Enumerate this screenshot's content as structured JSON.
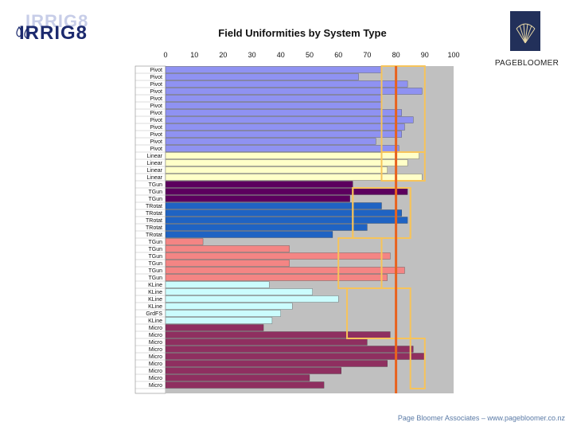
{
  "logo_left": {
    "ghost_text": "IRRIG8",
    "main_text": "IRRIG8"
  },
  "logo_right": {
    "name": "PAGEBLOOMER"
  },
  "footer": "Page Bloomer Associates – www.pagebloomer.co.nz",
  "chart_data": {
    "type": "bar",
    "orientation": "horizontal",
    "title": "Field Uniformities by System Type",
    "xlim": [
      0,
      100
    ],
    "x_ticks": [
      0,
      10,
      20,
      30,
      40,
      50,
      60,
      70,
      80,
      90,
      100
    ],
    "reference_line": {
      "value": 80,
      "color": "#e8621e"
    },
    "categories": [
      "Pivot",
      "Pivot",
      "Pivot",
      "Pivot",
      "Pivot",
      "Pivot",
      "Pivot",
      "Pivot",
      "Pivot",
      "Pivot",
      "Pivot",
      "Pivot",
      "Linear",
      "Linear",
      "Linear",
      "Linear",
      "TGun",
      "TGun",
      "TGun",
      "TRotat",
      "TRotat",
      "TRotat",
      "TRotat",
      "TRotat",
      "TGun",
      "TGun",
      "TGun",
      "TGun",
      "TGun",
      "TGun",
      "KLine",
      "KLine",
      "KLine",
      "KLine",
      "GrdFS",
      "KLine",
      "Micro",
      "Micro",
      "Micro",
      "Micro",
      "Micro",
      "Micro",
      "Micro",
      "Micro",
      "Micro"
    ],
    "values": [
      75,
      67,
      84,
      89,
      75,
      75,
      82,
      86,
      83,
      82,
      73,
      81,
      88,
      84,
      77,
      89,
      65,
      84,
      64,
      75,
      82,
      84,
      70,
      58,
      13,
      43,
      78,
      43,
      83,
      77,
      36,
      51,
      60,
      44,
      40,
      37,
      34,
      78,
      70,
      86,
      90,
      77,
      61,
      50,
      55
    ],
    "groups": [
      {
        "name": "Pivot",
        "color": "#8f92f2"
      },
      {
        "name": "Linear",
        "color": "#ffffc8"
      },
      {
        "name": "TGun (purple)",
        "color": "#5c005e"
      },
      {
        "name": "TRotat",
        "color": "#1f63c3"
      },
      {
        "name": "TGun",
        "color": "#f48584"
      },
      {
        "name": "KLine",
        "color": "#cbfcfd"
      },
      {
        "name": "Micro",
        "color": "#8f2f60"
      }
    ],
    "group_index": [
      0,
      0,
      0,
      0,
      0,
      0,
      0,
      0,
      0,
      0,
      0,
      0,
      1,
      1,
      1,
      1,
      2,
      2,
      2,
      3,
      3,
      3,
      3,
      3,
      4,
      4,
      4,
      4,
      4,
      4,
      5,
      5,
      5,
      5,
      5,
      5,
      6,
      6,
      6,
      6,
      6,
      6,
      6,
      6,
      6
    ],
    "range_boxes": [
      {
        "group": "Pivot",
        "min": 75,
        "max": 90
      },
      {
        "group": "Linear",
        "min": 75,
        "max": 90
      },
      {
        "group": "TGun",
        "min": 65,
        "max": 85
      },
      {
        "group": "TRotat",
        "min": 65,
        "max": 85
      },
      {
        "group": "TGun",
        "min": 60,
        "max": 75
      },
      {
        "group": "KLine",
        "min": 63,
        "max": 85
      },
      {
        "group": "Micro",
        "min": 85,
        "max": 90
      }
    ]
  }
}
